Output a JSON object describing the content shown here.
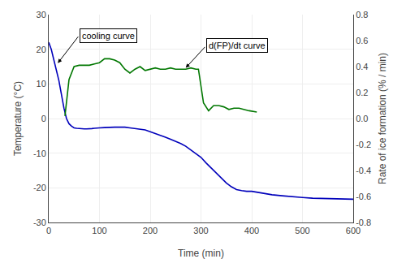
{
  "chart_data": {
    "type": "line",
    "xlabel": "Time (min)",
    "ylabel": "Temperature (°C)",
    "y2label": "Rate of ice formation (% / min)",
    "xlim": [
      0,
      600
    ],
    "ylim": [
      -30,
      30
    ],
    "y2lim": [
      -0.8,
      0.8
    ],
    "xticks": [
      0,
      100,
      200,
      300,
      400,
      500,
      600
    ],
    "yticks": [
      -30,
      -20,
      -10,
      0,
      10,
      20,
      30
    ],
    "y2ticks": [
      -0.8,
      -0.6,
      -0.4,
      -0.2,
      {
        "value": 0.0,
        "label": "0.0"
      },
      0.2,
      0.4,
      0.6,
      0.8
    ],
    "grid": true,
    "series": [
      {
        "color": "#0000bb",
        "x": [
          0,
          5,
          10,
          15,
          20,
          25,
          30,
          35,
          40,
          45,
          50,
          55,
          60,
          65,
          70,
          75,
          80,
          85,
          90,
          95,
          100,
          110,
          120,
          130,
          140,
          150,
          160,
          170,
          180,
          190,
          200,
          210,
          220,
          230,
          240,
          250,
          260,
          270,
          280,
          290,
          300,
          310,
          320,
          330,
          340,
          350,
          360,
          370,
          380,
          390,
          400,
          420,
          440,
          460,
          480,
          500,
          520,
          540,
          560,
          580,
          600
        ],
        "values": [
          22,
          20,
          17,
          14,
          11,
          7,
          3,
          0,
          -1.5,
          -2.2,
          -2.7,
          -2.8,
          -2.9,
          -2.9,
          -3.0,
          -3.0,
          -3.0,
          -2.9,
          -2.8,
          -2.8,
          -2.7,
          -2.6,
          -2.5,
          -2.5,
          -2.5,
          -2.5,
          -2.7,
          -2.9,
          -3.1,
          -3.3,
          -3.8,
          -4.3,
          -4.9,
          -5.4,
          -6.0,
          -6.6,
          -7.2,
          -8.0,
          -9.0,
          -10.0,
          -11.2,
          -12.8,
          -14.3,
          -15.8,
          -17.2,
          -18.6,
          -19.7,
          -20.5,
          -20.8,
          -21.0,
          -21.0,
          -21.5,
          -22.0,
          -22.3,
          -22.6,
          -22.8,
          -23.0,
          -23.1,
          -23.2,
          -23.2,
          -23.3
        ]
      },
      {
        "color": "#007700",
        "axis": "y2",
        "x": [
          32,
          40,
          50,
          60,
          70,
          80,
          90,
          100,
          110,
          120,
          130,
          140,
          150,
          160,
          170,
          180,
          190,
          200,
          210,
          220,
          230,
          240,
          250,
          260,
          270,
          280,
          290,
          295,
          305,
          315,
          325,
          335,
          345,
          355,
          365,
          375,
          385,
          395,
          410
        ],
        "values": [
          0.02,
          0.3,
          0.4,
          0.41,
          0.41,
          0.41,
          0.42,
          0.43,
          0.46,
          0.46,
          0.45,
          0.43,
          0.38,
          0.35,
          0.38,
          0.4,
          0.37,
          0.38,
          0.39,
          0.38,
          0.38,
          0.39,
          0.38,
          0.38,
          0.38,
          0.39,
          0.38,
          0.38,
          0.12,
          0.06,
          0.1,
          0.1,
          0.09,
          0.07,
          0.08,
          0.08,
          0.07,
          0.06,
          0.05
        ]
      }
    ],
    "annotations": [
      {
        "text": "cooling curve",
        "x": 18,
        "y": 16,
        "text_x": 60,
        "text_y": 24
      },
      {
        "text": "d(FP)/dt curve",
        "x": 270,
        "y": 0.39,
        "text_x": 310,
        "text_y": 0.56,
        "axis": "y2"
      }
    ]
  }
}
